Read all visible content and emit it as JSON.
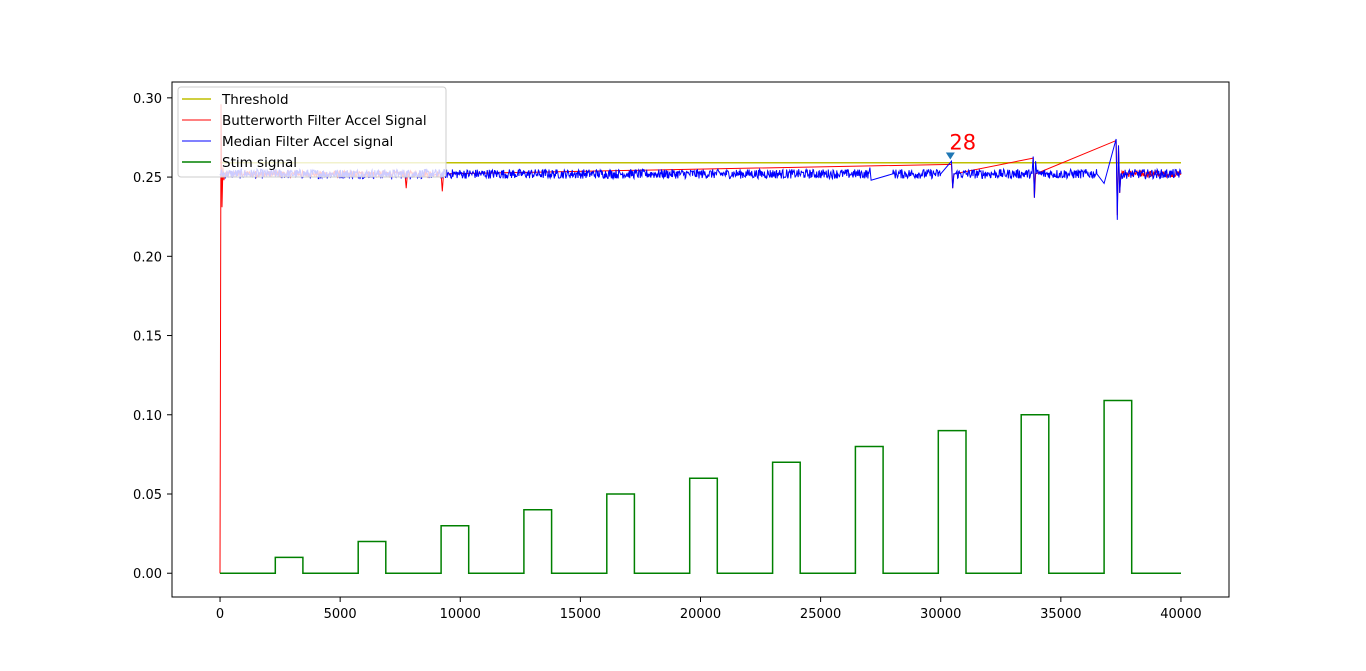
{
  "chart_data": {
    "type": "line",
    "title": "",
    "xlabel": "",
    "ylabel": "",
    "xlim": [
      -2000,
      42000
    ],
    "ylim": [
      -0.015,
      0.31
    ],
    "x_ticks": [
      0,
      5000,
      10000,
      15000,
      20000,
      25000,
      30000,
      35000,
      40000
    ],
    "x_tick_labels": [
      "0",
      "5000",
      "10000",
      "15000",
      "20000",
      "25000",
      "30000",
      "35000",
      "40000"
    ],
    "y_ticks": [
      0.0,
      0.05,
      0.1,
      0.15,
      0.2,
      0.25,
      0.3
    ],
    "y_tick_labels": [
      "0.00",
      "0.05",
      "0.10",
      "0.15",
      "0.20",
      "0.25",
      "0.30"
    ],
    "grid": false,
    "legend_position": "top-left",
    "legend": [
      {
        "name": "Threshold",
        "color": "#bfbf00",
        "width": 1.5
      },
      {
        "name": "Butterworth Filter Accel Signal",
        "color": "#ff0000",
        "width": 1
      },
      {
        "name": "Median Filter Accel signal",
        "color": "#0000ff",
        "width": 1
      },
      {
        "name": "Stim signal",
        "color": "#008000",
        "width": 1.5
      }
    ],
    "series": [
      {
        "name": "Threshold",
        "color": "#bfbf00",
        "x": [
          0,
          40000
        ],
        "y": [
          0.259,
          0.259
        ]
      },
      {
        "name": "Butterworth Filter Accel Signal",
        "color": "#ff0000",
        "baseline": 0.252,
        "x": [
          0,
          40,
          80,
          120,
          160,
          200,
          600,
          7700,
          7750,
          7800,
          9200,
          9250,
          9300,
          30450,
          30500,
          30550,
          33850,
          33900,
          33950,
          37300,
          37350,
          37400,
          37450,
          37500,
          40000
        ],
        "y": [
          0.0,
          0.296,
          0.231,
          0.256,
          0.248,
          0.252,
          0.252,
          0.252,
          0.243,
          0.252,
          0.252,
          0.241,
          0.252,
          0.258,
          0.243,
          0.252,
          0.262,
          0.237,
          0.252,
          0.273,
          0.226,
          0.27,
          0.24,
          0.252,
          0.252
        ]
      },
      {
        "name": "Median Filter Accel signal",
        "color": "#0000ff",
        "baseline": 0.252,
        "x": [
          0,
          2000,
          4000,
          6000,
          8000,
          10000,
          12000,
          14000,
          16000,
          18000,
          20000,
          22000,
          24000,
          26000,
          27000,
          27050,
          27100,
          28000,
          30000,
          30450,
          30500,
          30550,
          32000,
          33800,
          33850,
          33900,
          33950,
          34000,
          36500,
          36800,
          37300,
          37350,
          37400,
          37450,
          37500,
          38000,
          40000
        ],
        "y": [
          0.252,
          0.252,
          0.252,
          0.252,
          0.252,
          0.252,
          0.252,
          0.252,
          0.252,
          0.252,
          0.252,
          0.252,
          0.252,
          0.252,
          0.252,
          0.256,
          0.248,
          0.252,
          0.252,
          0.26,
          0.243,
          0.252,
          0.252,
          0.252,
          0.263,
          0.237,
          0.26,
          0.252,
          0.252,
          0.246,
          0.274,
          0.223,
          0.27,
          0.24,
          0.252,
          0.252,
          0.252
        ]
      },
      {
        "name": "Stim signal",
        "color": "#008000",
        "x": [
          0,
          2300,
          2300,
          3450,
          3450,
          5750,
          5750,
          6900,
          6900,
          9200,
          9200,
          10350,
          10350,
          12650,
          12650,
          13800,
          13800,
          16100,
          16100,
          17250,
          17250,
          19550,
          19550,
          20700,
          20700,
          23000,
          23000,
          24150,
          24150,
          26450,
          26450,
          27600,
          27600,
          29900,
          29900,
          31050,
          31050,
          33350,
          33350,
          34500,
          34500,
          36800,
          36800,
          37950,
          37950,
          40000
        ],
        "y": [
          0,
          0,
          0.01,
          0.01,
          0,
          0,
          0.02,
          0.02,
          0,
          0,
          0.03,
          0.03,
          0,
          0,
          0.04,
          0.04,
          0,
          0,
          0.05,
          0.05,
          0,
          0,
          0.06,
          0.06,
          0,
          0,
          0.07,
          0.07,
          0,
          0,
          0.08,
          0.08,
          0,
          0,
          0.09,
          0.09,
          0,
          0,
          0.1,
          0.1,
          0,
          0,
          0.109,
          0.109,
          0,
          0
        ]
      }
    ],
    "annotations": [
      {
        "text": "28",
        "x": 30400,
        "y": 0.263,
        "color": "#ff0000",
        "marker": "triangle-down",
        "marker_color": "#1f77b4"
      }
    ]
  }
}
